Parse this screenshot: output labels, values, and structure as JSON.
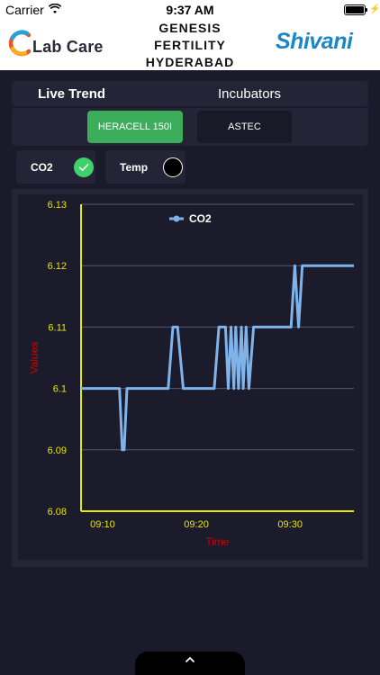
{
  "status_bar": {
    "carrier": "Carrier",
    "time": "9:37 AM"
  },
  "header": {
    "logo_left": "Lab Care",
    "title_lines": [
      "GENESIS",
      "FERTILITY",
      "HYDERABAD"
    ],
    "logo_right": "Shivani"
  },
  "tabs": [
    {
      "label": "Live Trend",
      "active": true
    },
    {
      "label": "Incubators",
      "active": false
    }
  ],
  "devices": [
    {
      "label": "HERACELL 150I",
      "selected": true
    },
    {
      "label": "ASTEC",
      "selected": false
    }
  ],
  "parameters": [
    {
      "label": "CO2",
      "checked": true
    },
    {
      "label": "Temp",
      "checked": false
    }
  ],
  "colors": {
    "accent_green": "#3cae5b",
    "check_green": "#3ed36a",
    "series_blue": "#7fb3ea",
    "axis_yellow": "#e6e600",
    "axis_title_red": "#cc0000"
  },
  "chart_data": {
    "type": "line",
    "title": "",
    "xlabel": "Time",
    "ylabel": "Values",
    "ylim": [
      6.08,
      6.13
    ],
    "yticks": [
      "6.13",
      "6.12",
      "6.11",
      "6.1",
      "6.09",
      "6.08"
    ],
    "xticks": [
      "09:10",
      "09:20",
      "09:30"
    ],
    "xlim_minutes": [
      7.7,
      36.8
    ],
    "grid": true,
    "legend": "top-center",
    "series": [
      {
        "name": "CO2",
        "x": [
          7.7,
          11.8,
          12.1,
          12.3,
          12.6,
          13.1,
          17.0,
          17.5,
          18.0,
          18.6,
          21.9,
          22.4,
          23.1,
          23.4,
          23.7,
          24.0,
          24.2,
          24.5,
          24.8,
          25.0,
          25.3,
          25.6,
          26.1,
          30.1,
          30.5,
          30.9,
          31.3,
          36.8
        ],
        "y": [
          6.1,
          6.1,
          6.09,
          6.09,
          6.1,
          6.1,
          6.1,
          6.11,
          6.11,
          6.1,
          6.1,
          6.11,
          6.11,
          6.1,
          6.11,
          6.1,
          6.11,
          6.1,
          6.11,
          6.1,
          6.11,
          6.1,
          6.11,
          6.11,
          6.12,
          6.11,
          6.12,
          6.12
        ]
      }
    ]
  }
}
